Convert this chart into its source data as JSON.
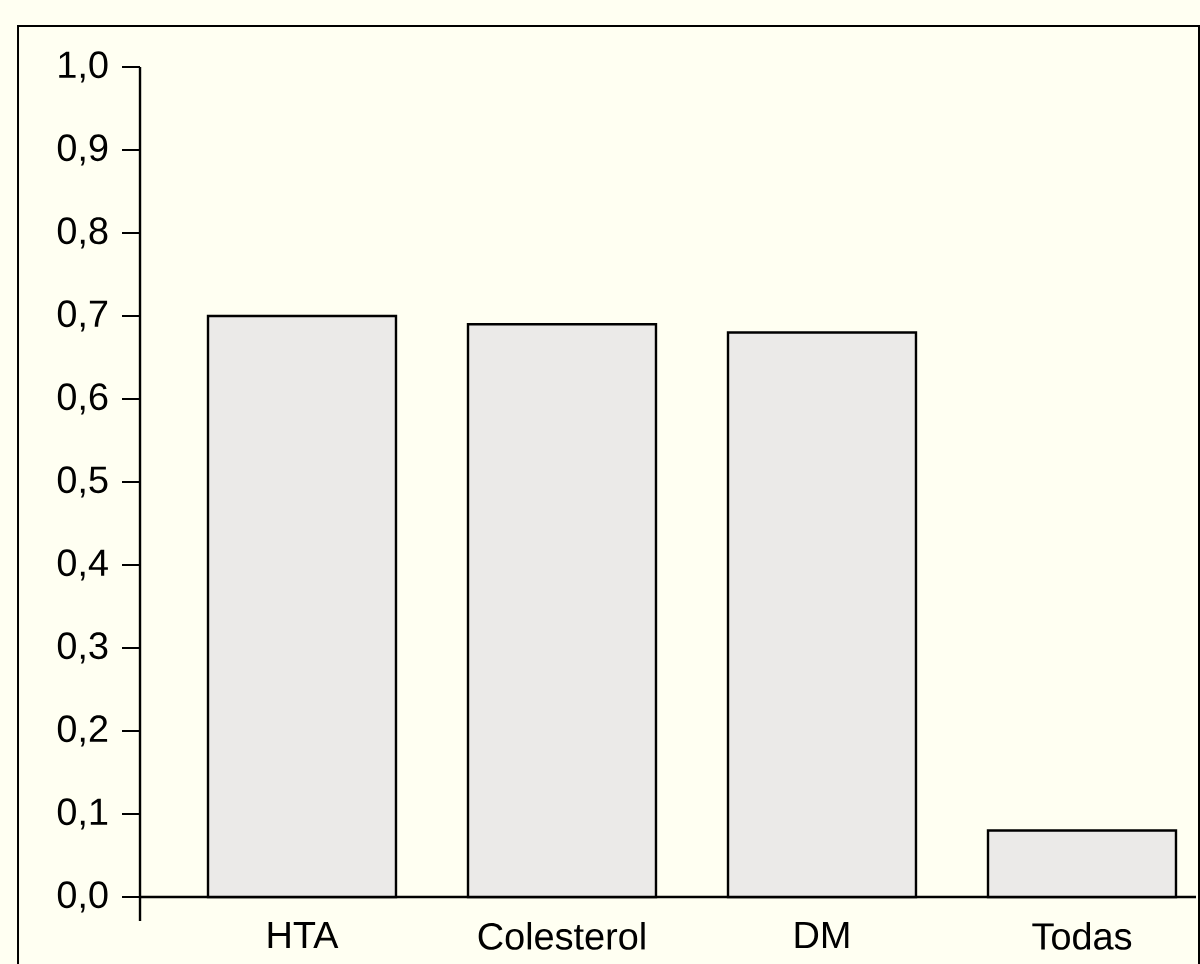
{
  "chart_data": {
    "type": "bar",
    "categories": [
      "HTA",
      "Colesterol",
      "DM",
      "Todas"
    ],
    "values": [
      0.7,
      0.69,
      0.68,
      0.08
    ],
    "color": "#ebeae8",
    "ylim": [
      0,
      1
    ],
    "yticks": [
      {
        "value": 0,
        "label": "0,0"
      },
      {
        "value": 0.1,
        "label": "0,1"
      },
      {
        "value": 0.2,
        "label": "0,2"
      },
      {
        "value": 0.3,
        "label": "0,3"
      },
      {
        "value": 0.4,
        "label": "0,4"
      },
      {
        "value": 0.5,
        "label": "0,5"
      },
      {
        "value": 0.6,
        "label": "0,6"
      },
      {
        "value": 0.7,
        "label": "0,7"
      },
      {
        "value": 0.8,
        "label": "0,8"
      },
      {
        "value": 0.9,
        "label": "0,9"
      },
      {
        "value": 1.0,
        "label": "1,0"
      }
    ]
  }
}
